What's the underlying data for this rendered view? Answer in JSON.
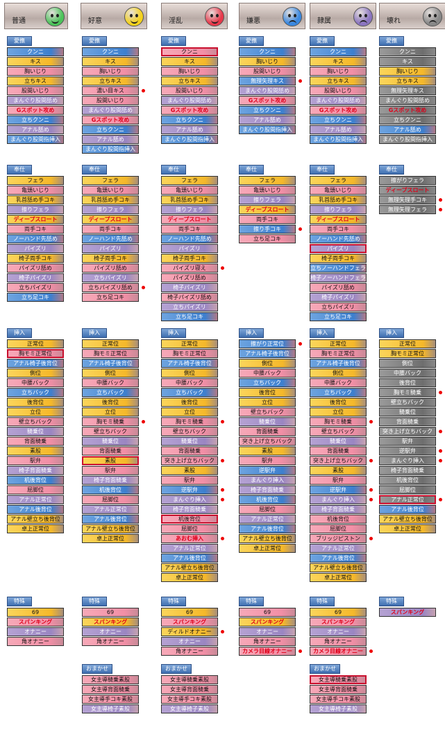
{
  "moods": [
    {
      "label": "普通",
      "face": "#4cc45a",
      "mouth": "smile"
    },
    {
      "label": "好意",
      "face": "#f5d21c",
      "mouth": "smile"
    },
    {
      "label": "淫乱",
      "face": "#e8384a",
      "mouth": "smile"
    },
    {
      "label": "嫌悪",
      "face": "#3a88e0",
      "mouth": "sad"
    },
    {
      "label": "隷属",
      "face": "#8b75c0",
      "mouth": "sad"
    },
    {
      "label": "壊れ",
      "face": "#888888",
      "mouth": "sad"
    }
  ],
  "tabs": {
    "aibu": "愛撫",
    "houshi": "奉仕",
    "sounyu": "挿入",
    "tokushu": "特殊",
    "omakase": "おまかせ"
  },
  "columns": [
    {
      "aibu": [
        [
          "クンニ",
          "blue"
        ],
        [
          "キス",
          "yellow"
        ],
        [
          "胸いじり",
          "pink"
        ],
        [
          "立ちキス",
          "yellow"
        ],
        [
          "股間いじり",
          "pink"
        ],
        [
          "まんぐり股間舐め",
          "purple"
        ],
        [
          "Gスポット攻め",
          "pink red"
        ],
        [
          "立ちクンニ",
          "blue"
        ],
        [
          "アナル舐め",
          "purple"
        ],
        [
          "まんぐり股間指挿入",
          "blue"
        ]
      ],
      "houshi": [
        [
          "フェラ",
          "yellow"
        ],
        [
          "亀頭いじり",
          "pink"
        ],
        [
          "乳首舐め手コキ",
          "yellow"
        ],
        [
          "擦りフェラ",
          "purple"
        ],
        [
          "ディープスロート",
          "yellow red"
        ],
        [
          "両手コキ",
          "pink"
        ],
        [
          "ノーハンド先舐め",
          "blue"
        ],
        [
          "パイズリ",
          "purple"
        ],
        [
          "椅子両手コキ",
          "yellow"
        ],
        [
          "パイズリ舐め",
          "pink"
        ],
        [
          "椅子パイズリ",
          "purple"
        ],
        [
          "立ちパイズリ",
          "pink"
        ],
        [
          "立ち足コキ",
          "blue"
        ]
      ],
      "sounyu": [
        [
          "正常位",
          "yellow"
        ],
        [
          "胸モミ正常位",
          "pink sel"
        ],
        [
          "アナル椅子後背位",
          "blue"
        ],
        [
          "側位",
          "yellow"
        ],
        [
          "中腰バック",
          "pink"
        ],
        [
          "立ちバック",
          "blue"
        ],
        [
          "後背位",
          "yellow"
        ],
        [
          "立位",
          "yellow"
        ],
        [
          "壁立ちバック",
          "pink"
        ],
        [
          "騎乗位",
          "purple"
        ],
        [
          "背面騎乗",
          "pink"
        ],
        [
          "素股",
          "yellow"
        ],
        [
          "駅弁",
          "pink"
        ],
        [
          "椅子背面騎乗",
          "purple"
        ],
        [
          "机後背位",
          "blue"
        ],
        [
          "屈脚位",
          "pink"
        ],
        [
          "アナル正常位",
          "purple"
        ],
        [
          "アナル後背位",
          "blue"
        ],
        [
          "アナル壁立ち後背位",
          "yellow"
        ],
        [
          "卓上正常位",
          "yellow"
        ]
      ],
      "tokushu": [
        [
          "69",
          "yellow"
        ],
        [
          "スパンキング",
          "pink red"
        ],
        [
          "オナニー",
          "purple"
        ],
        [
          "角オナニー",
          "pink"
        ]
      ],
      "omakase": []
    },
    {
      "aibu": [
        [
          "クンニ",
          "blue"
        ],
        [
          "キス",
          "yellow"
        ],
        [
          "胸いじり",
          "pink"
        ],
        [
          "立ちキス",
          "yellow"
        ],
        [
          "濃い目キス",
          "pink"
        ],
        [
          "股間いじり",
          "pink"
        ],
        [
          "まんぐり股間舐め",
          "purple"
        ],
        [
          "Gスポット攻め",
          "pink red"
        ],
        [
          "立ちクンニ",
          "blue"
        ],
        [
          "アナル舐め",
          "purple"
        ],
        [
          "まんぐり股間指挿入",
          "blue"
        ]
      ],
      "houshi": [
        [
          "フェラ",
          "yellow"
        ],
        [
          "亀頭いじり",
          "pink"
        ],
        [
          "乳首舐め手コキ",
          "yellow"
        ],
        [
          "擦りフェラ",
          "purple"
        ],
        [
          "ディープスロート",
          "yellow red"
        ],
        [
          "両手コキ",
          "pink"
        ],
        [
          "ノーハンド先舐め",
          "blue"
        ],
        [
          "パイズリ",
          "purple"
        ],
        [
          "椅子両手コキ",
          "yellow"
        ],
        [
          "パイズリ舐め",
          "pink"
        ],
        [
          "立ちパイズリ",
          "purple"
        ],
        [
          "立ちパイズリ舐め",
          "pink"
        ],
        [
          "立ち足コキ",
          "pink"
        ]
      ],
      "sounyu": [
        [
          "正常位",
          "yellow"
        ],
        [
          "胸モミ正常位",
          "pink"
        ],
        [
          "アナル椅子後背位",
          "blue"
        ],
        [
          "側位",
          "yellow"
        ],
        [
          "中腰バック",
          "pink"
        ],
        [
          "立ちバック",
          "blue"
        ],
        [
          "後背位",
          "yellow"
        ],
        [
          "立位",
          "yellow"
        ],
        [
          "胸モミ騎乗",
          "pink"
        ],
        [
          "壁立ちバック",
          "pink"
        ],
        [
          "騎乗位",
          "purple"
        ],
        [
          "背面騎乗",
          "pink"
        ],
        [
          "素股",
          "yellow sel"
        ],
        [
          "駅弁",
          "pink"
        ],
        [
          "椅子背面騎乗",
          "purple"
        ],
        [
          "机後背位",
          "blue"
        ],
        [
          "屈脚位",
          "pink"
        ],
        [
          "アナル正常位",
          "purple"
        ],
        [
          "アナル後背位",
          "blue"
        ],
        [
          "アナル壁立ち後背位",
          "yellow"
        ],
        [
          "卓上正常位",
          "yellow"
        ]
      ],
      "tokushu": [
        [
          "69",
          "pink"
        ],
        [
          "スパンキング",
          "yellow red"
        ],
        [
          "オナニー",
          "purple"
        ],
        [
          "角オナニー",
          "pink"
        ]
      ],
      "omakase": [
        [
          "女主導騎乗素股",
          "pink"
        ],
        [
          "女主導背面騎乗",
          "pink"
        ],
        [
          "女主導手コキ素股",
          "pink"
        ],
        [
          "女主導椅子素股",
          "purple"
        ]
      ]
    },
    {
      "aibu": [
        [
          "クンニ",
          "pink sel"
        ],
        [
          "キス",
          "yellow"
        ],
        [
          "胸いじり",
          "pink"
        ],
        [
          "立ちキス",
          "yellow"
        ],
        [
          "股間いじり",
          "pink"
        ],
        [
          "まんぐり股間舐め",
          "purple"
        ],
        [
          "Gスポット攻め",
          "pink red"
        ],
        [
          "立ちクンニ",
          "blue"
        ],
        [
          "アナル舐め",
          "purple"
        ],
        [
          "まんぐり股間指挿入",
          "blue"
        ]
      ],
      "houshi": [
        [
          "フェラ",
          "yellow"
        ],
        [
          "亀頭いじり",
          "pink"
        ],
        [
          "乳首舐め手コキ",
          "yellow"
        ],
        [
          "擦りフェラ",
          "purple"
        ],
        [
          "ディープスロート",
          "pink red"
        ],
        [
          "両手コキ",
          "pink"
        ],
        [
          "ノーハンド先舐め",
          "blue"
        ],
        [
          "パイズリ",
          "purple"
        ],
        [
          "椅子両手コキ",
          "yellow"
        ],
        [
          "パイズリ寝え",
          "pink"
        ],
        [
          "パイズリ舐め",
          "pink"
        ],
        [
          "椅子パイズリ",
          "purple"
        ],
        [
          "椅子パイズリ舐め",
          "pink"
        ],
        [
          "立ちパイズリ",
          "purple"
        ],
        [
          "立ち足コキ",
          "blue"
        ]
      ],
      "sounyu": [
        [
          "正常位",
          "yellow"
        ],
        [
          "胸モミ正常位",
          "pink"
        ],
        [
          "アナル椅子後背位",
          "blue"
        ],
        [
          "側位",
          "yellow"
        ],
        [
          "中腰バック",
          "pink"
        ],
        [
          "立ちバック",
          "blue"
        ],
        [
          "後背位",
          "yellow"
        ],
        [
          "立位",
          "yellow"
        ],
        [
          "胸モミ騎乗",
          "pink"
        ],
        [
          "壁立ちバック",
          "pink"
        ],
        [
          "騎乗位",
          "purple"
        ],
        [
          "背面騎乗",
          "pink"
        ],
        [
          "突き上げ立ちバック",
          "pink"
        ],
        [
          "素股",
          "yellow"
        ],
        [
          "駅弁",
          "pink"
        ],
        [
          "逆駅弁",
          "blue"
        ],
        [
          "まんぐり挿入",
          "purple"
        ],
        [
          "椅子背面騎乗",
          "purple"
        ],
        [
          "机後背位",
          "pink sel"
        ],
        [
          "屈脚位",
          "pink"
        ],
        [
          "あおむ挿入",
          "pink red"
        ],
        [
          "アナル正常位",
          "purple"
        ],
        [
          "アナル後背位",
          "blue"
        ],
        [
          "アナル壁立ち後背位",
          "yellow"
        ],
        [
          "卓上正常位",
          "yellow"
        ]
      ],
      "tokushu": [
        [
          "69",
          "yellow"
        ],
        [
          "スパンキング",
          "pink red"
        ],
        [
          "ディルドオナニー",
          "yellow"
        ],
        [
          "オナニー",
          "purple"
        ],
        [
          "角オナニー",
          "pink"
        ]
      ],
      "omakase": [
        [
          "女主導騎乗素股",
          "pink"
        ],
        [
          "女主導背面騎乗",
          "pink"
        ],
        [
          "女主導手コキ素股",
          "pink"
        ],
        [
          "女主導椅子素股",
          "purple"
        ]
      ]
    },
    {
      "aibu": [
        [
          "クンニ",
          "blue"
        ],
        [
          "胸いじり",
          "yellow"
        ],
        [
          "股間いじり",
          "pink"
        ],
        [
          "無理矢理キス",
          "blue"
        ],
        [
          "まんぐり股間舐め",
          "purple"
        ],
        [
          "Gスポット攻め",
          "pink red"
        ],
        [
          "立ちクンニ",
          "blue"
        ],
        [
          "アナル舐め",
          "purple"
        ],
        [
          "まんぐり股間指挿入",
          "blue"
        ]
      ],
      "houshi": [
        [
          "フェラ",
          "yellow"
        ],
        [
          "亀頭いじり",
          "pink"
        ],
        [
          "擦りフェラ",
          "purple"
        ],
        [
          "ディープスロート",
          "yellow red"
        ],
        [
          "両手コキ",
          "pink"
        ],
        [
          "擦り手コキ",
          "blue"
        ],
        [
          "立ち足コキ",
          "pink"
        ]
      ],
      "sounyu": [
        [
          "擦がり正常位",
          "blue"
        ],
        [
          "アナル椅子後背位",
          "blue"
        ],
        [
          "側位",
          "yellow"
        ],
        [
          "中腰バック",
          "pink"
        ],
        [
          "立ちバック",
          "blue"
        ],
        [
          "後背位",
          "yellow"
        ],
        [
          "立位",
          "yellow"
        ],
        [
          "壁立ちバック",
          "pink"
        ],
        [
          "騎乗位",
          "purple"
        ],
        [
          "背面騎乗",
          "pink"
        ],
        [
          "突き上げ立ちバック",
          "pink"
        ],
        [
          "素股",
          "yellow"
        ],
        [
          "駅弁",
          "pink"
        ],
        [
          "逆駅弁",
          "blue"
        ],
        [
          "まんぐり挿入",
          "purple"
        ],
        [
          "椅子背面騎乗",
          "purple"
        ],
        [
          "机後背位",
          "blue"
        ],
        [
          "屈脚位",
          "pink"
        ],
        [
          "アナル正常位",
          "purple"
        ],
        [
          "アナル後背位",
          "blue"
        ],
        [
          "アナル壁立ち後背位",
          "yellow"
        ],
        [
          "卓上正常位",
          "yellow"
        ]
      ],
      "tokushu": [
        [
          "69",
          "pink"
        ],
        [
          "スパンキング",
          "yellow red"
        ],
        [
          "オナニー",
          "purple"
        ],
        [
          "角オナニー",
          "pink"
        ],
        [
          "カメラ目線オナニー",
          "pink red"
        ]
      ],
      "omakase": []
    },
    {
      "aibu": [
        [
          "クンニ",
          "blue"
        ],
        [
          "キス",
          "yellow"
        ],
        [
          "胸いじり",
          "pink"
        ],
        [
          "立ちキス",
          "yellow"
        ],
        [
          "股間いじり",
          "pink"
        ],
        [
          "まんぐり股間舐め",
          "purple"
        ],
        [
          "Gスポット攻め",
          "pink red"
        ],
        [
          "立ちクンニ",
          "blue"
        ],
        [
          "アナル舐め",
          "purple"
        ],
        [
          "まんぐり股間指挿入",
          "blue"
        ]
      ],
      "houshi": [
        [
          "フェラ",
          "yellow"
        ],
        [
          "亀頭いじり",
          "pink"
        ],
        [
          "乳首舐め手コキ",
          "yellow"
        ],
        [
          "擦りフェラ",
          "purple"
        ],
        [
          "ディープスロート",
          "yellow red"
        ],
        [
          "両手コキ",
          "pink"
        ],
        [
          "ノーハンド先舐め",
          "blue"
        ],
        [
          "パイズリ",
          "purple sel"
        ],
        [
          "椅子両手コキ",
          "yellow"
        ],
        [
          "立ちノーハンドフェラ",
          "blue"
        ],
        [
          "椅子ノーハンドフェラ",
          "purple"
        ],
        [
          "パイズリ舐め",
          "pink"
        ],
        [
          "椅子パイズリ",
          "purple"
        ],
        [
          "立ちパイズリ",
          "pink"
        ],
        [
          "立ち足コキ",
          "blue"
        ]
      ],
      "sounyu": [
        [
          "正常位",
          "yellow"
        ],
        [
          "胸モミ正常位",
          "pink"
        ],
        [
          "アナル椅子後背位",
          "blue"
        ],
        [
          "側位",
          "yellow"
        ],
        [
          "中腰バック",
          "pink"
        ],
        [
          "立ちバック",
          "blue"
        ],
        [
          "後背位",
          "yellow"
        ],
        [
          "立位",
          "yellow"
        ],
        [
          "胸モミ騎乗",
          "pink"
        ],
        [
          "壁立ちバック",
          "pink"
        ],
        [
          "騎乗位",
          "purple"
        ],
        [
          "背面騎乗",
          "pink"
        ],
        [
          "突き上げ立ちバック",
          "pink"
        ],
        [
          "素股",
          "yellow"
        ],
        [
          "駅弁",
          "pink"
        ],
        [
          "逆駅弁",
          "blue"
        ],
        [
          "まんぐり挿入",
          "purple"
        ],
        [
          "椅子背面騎乗",
          "purple"
        ],
        [
          "机後背位",
          "pink"
        ],
        [
          "屈脚位",
          "pink"
        ],
        [
          "ブリッジピストン",
          "pink"
        ],
        [
          "アナル正常位",
          "purple"
        ],
        [
          "アナル後背位",
          "blue"
        ],
        [
          "アナル壁立ち後背位",
          "yellow"
        ],
        [
          "卓上正常位",
          "yellow"
        ]
      ],
      "tokushu": [
        [
          "69",
          "yellow"
        ],
        [
          "スパンキング",
          "pink red"
        ],
        [
          "オナニー",
          "purple"
        ],
        [
          "角オナニー",
          "pink"
        ],
        [
          "カメラ目線オナニー",
          "pink red"
        ]
      ],
      "omakase": [
        [
          "女主導騎乗素股",
          "pink sel"
        ],
        [
          "女主導背面騎乗",
          "pink"
        ],
        [
          "女主導手コキ素股",
          "pink"
        ],
        [
          "女主導椅子素股",
          "purple"
        ]
      ]
    },
    {
      "aibu": [
        [
          "クンニ",
          "gray"
        ],
        [
          "キス",
          "gray"
        ],
        [
          "胸いじり",
          "yellow"
        ],
        [
          "立ちキス",
          "yellow"
        ],
        [
          "無理矢理キス",
          "gray"
        ],
        [
          "まんぐり股間舐め",
          "gray"
        ],
        [
          "Gスポット攻め",
          "gray red"
        ],
        [
          "立ちクンニ",
          "gray"
        ],
        [
          "アナル舐め",
          "blue"
        ],
        [
          "まんぐり股間指挿入",
          "gray"
        ]
      ],
      "houshi": [
        [
          "擦がりフェラ",
          "gray"
        ],
        [
          "ディープスロート",
          "gray red"
        ],
        [
          "無理矢理手コキ",
          "gray"
        ],
        [
          "無理矢理フェラ",
          "gray"
        ]
      ],
      "sounyu": [
        [
          "正常位",
          "yellow"
        ],
        [
          "胸モミ正常位",
          "yellow"
        ],
        [
          "側位",
          "gray"
        ],
        [
          "中腰バック",
          "gray"
        ],
        [
          "後背位",
          "gray"
        ],
        [
          "胸モミ騎乗",
          "gray"
        ],
        [
          "壁立ちバック",
          "gray"
        ],
        [
          "騎乗位",
          "gray"
        ],
        [
          "背面騎乗",
          "gray"
        ],
        [
          "突き上げ立ちバック",
          "gray"
        ],
        [
          "駅弁",
          "gray"
        ],
        [
          "逆駅弁",
          "gray"
        ],
        [
          "まんぐり挿入",
          "gray"
        ],
        [
          "椅子背面騎乗",
          "gray"
        ],
        [
          "机後背位",
          "gray"
        ],
        [
          "屈脚位",
          "gray"
        ],
        [
          "アナル正常位",
          "gray sel"
        ],
        [
          "アナル後背位",
          "blue"
        ],
        [
          "アナル壁立ち後背位",
          "yellow"
        ],
        [
          "卓上正常位",
          "yellow"
        ]
      ],
      "tokushu": [
        [
          "スパンキング",
          "purple red"
        ]
      ],
      "omakase": []
    }
  ]
}
